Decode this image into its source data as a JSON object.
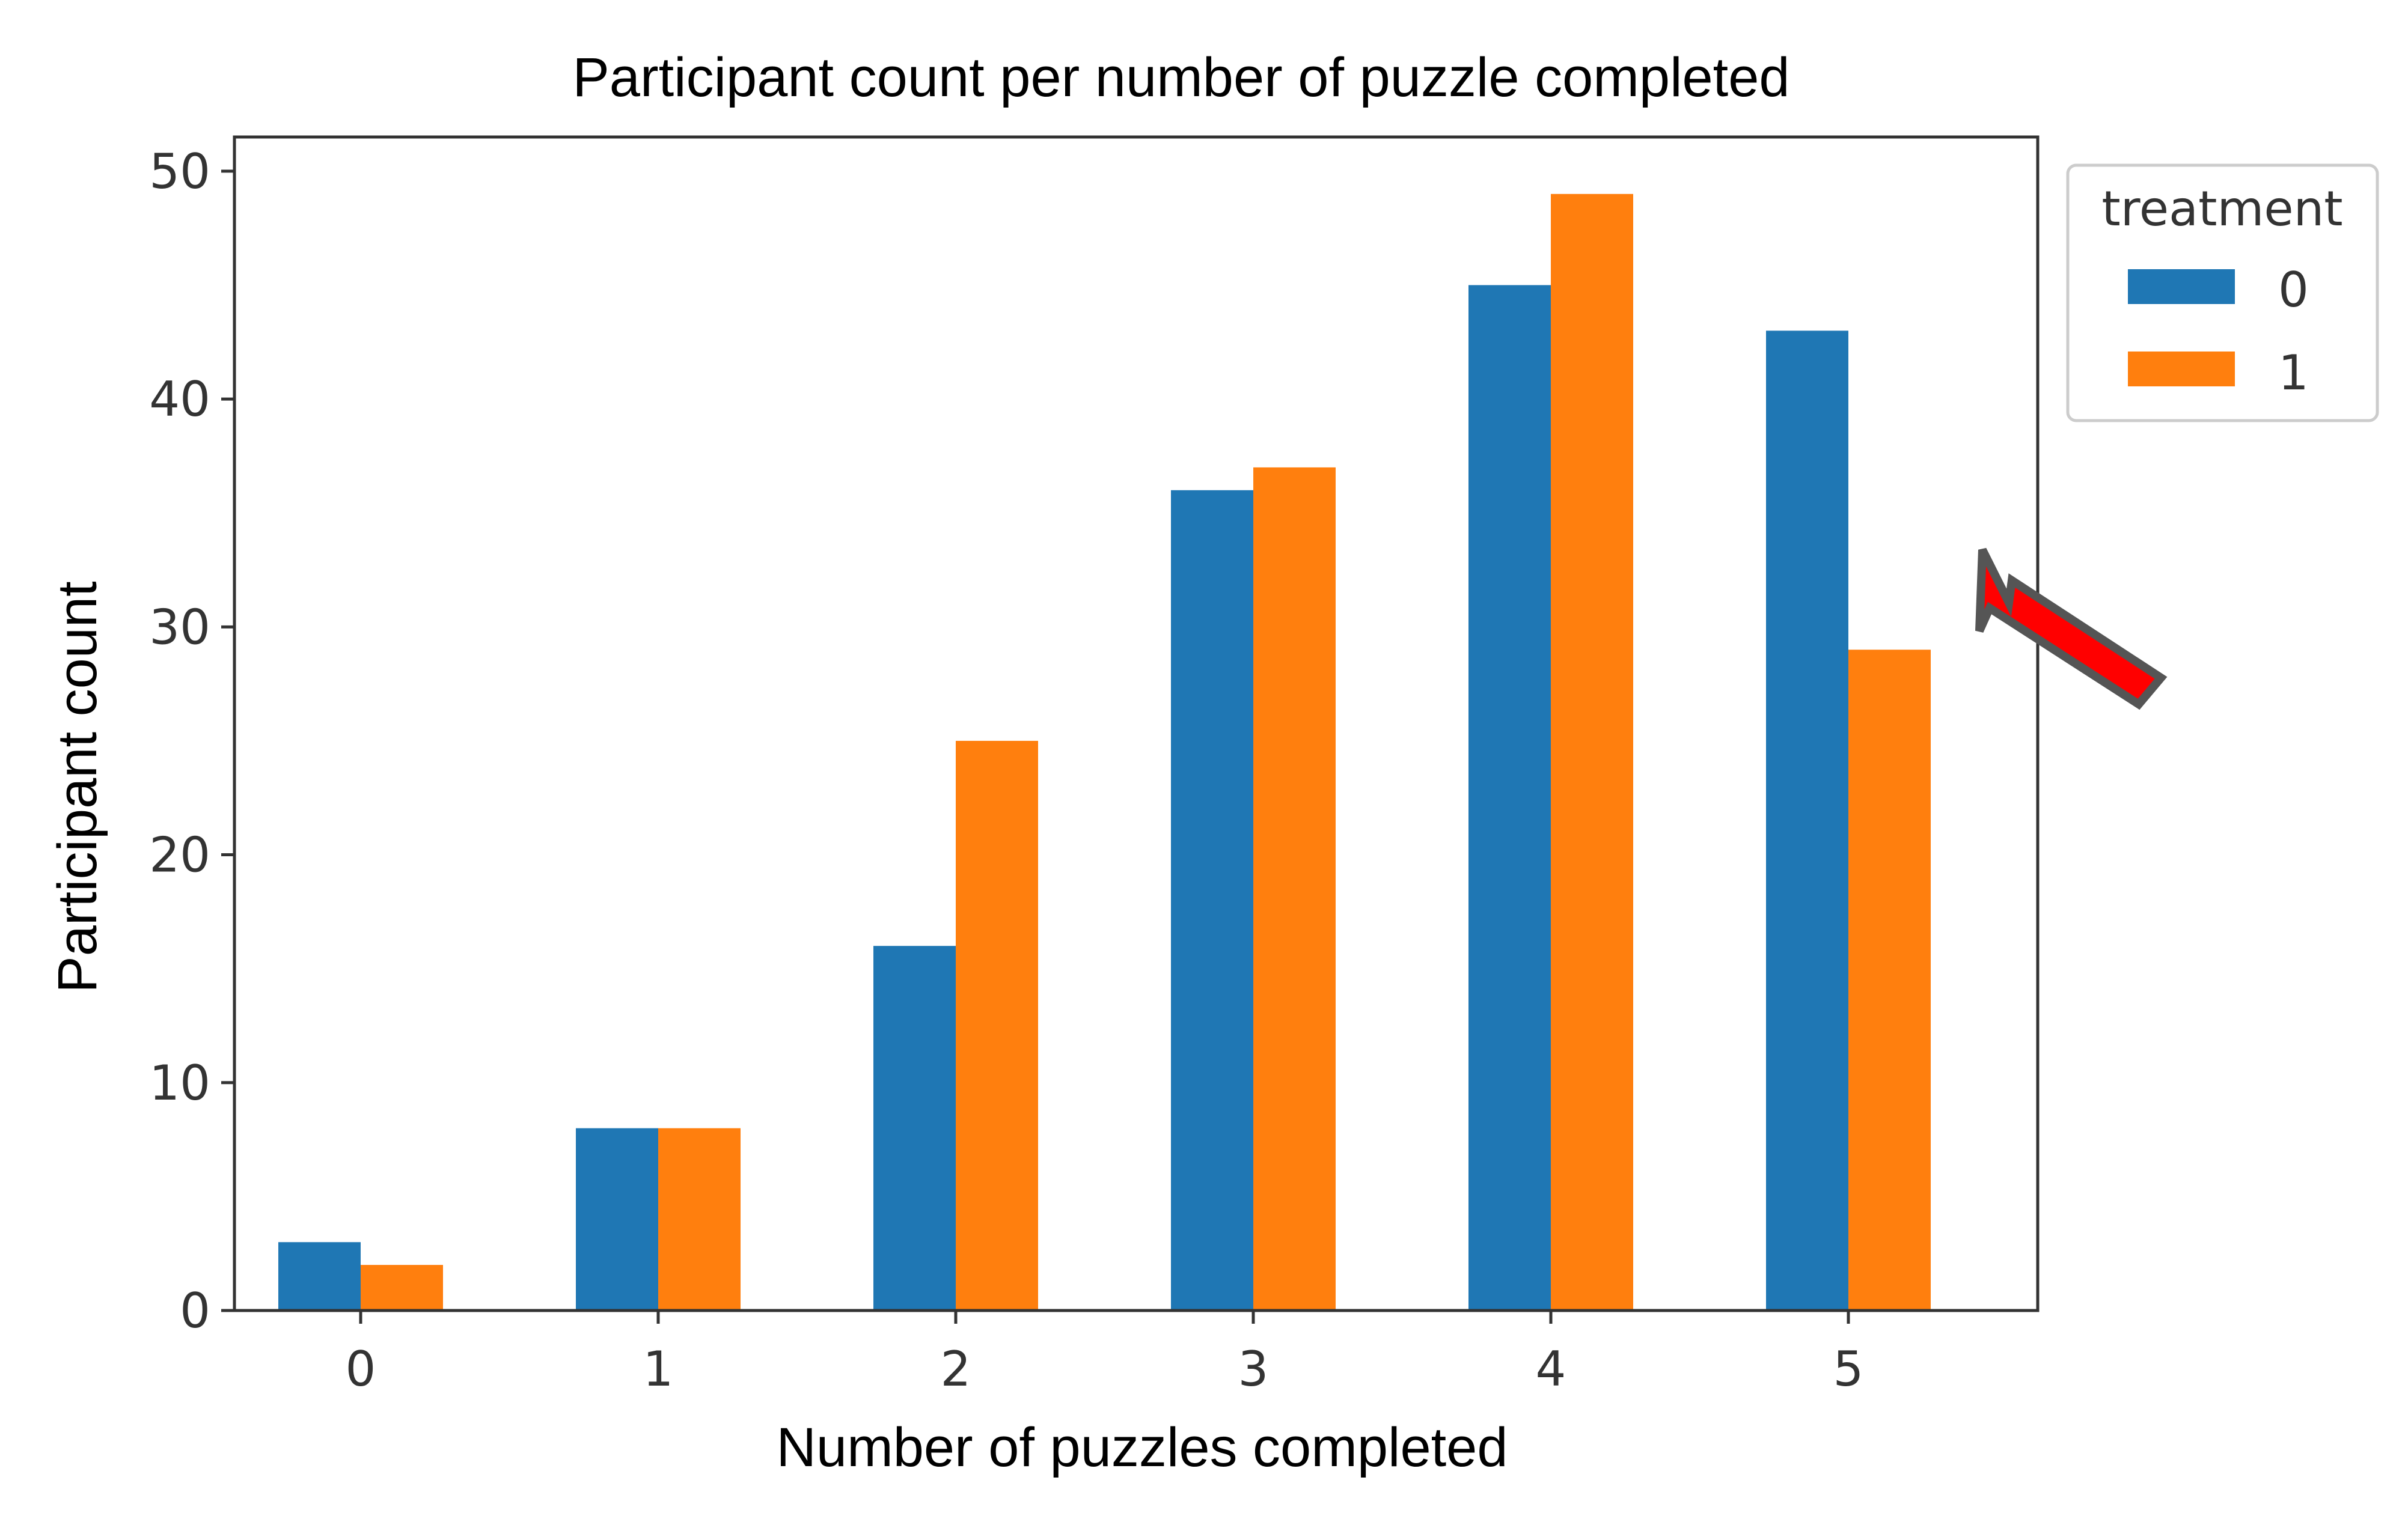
{
  "chart_data": {
    "type": "bar",
    "title": "Participant count per number of puzzle completed",
    "xlabel": "Number of puzzles completed",
    "ylabel": "Participant count",
    "categories": [
      "0",
      "1",
      "2",
      "3",
      "4",
      "5"
    ],
    "series": [
      {
        "name": "0",
        "values": [
          3,
          8,
          16,
          36,
          45,
          43
        ],
        "color": "#1f77b4"
      },
      {
        "name": "1",
        "values": [
          2,
          8,
          25,
          37,
          49,
          29
        ],
        "color": "#ff7f0e"
      }
    ],
    "ylim": [
      0,
      51.5
    ],
    "yticks": [
      0,
      10,
      20,
      30,
      40,
      50
    ],
    "ytick_labels": [
      "0",
      "10",
      "20",
      "30",
      "40",
      "50"
    ],
    "grid": false,
    "legend": {
      "title": "treatment",
      "placement": "outside-top-right"
    },
    "annotation": {
      "shape": "arrow",
      "color": "#ff0000",
      "outline": "#555555",
      "points_to": "5"
    }
  }
}
